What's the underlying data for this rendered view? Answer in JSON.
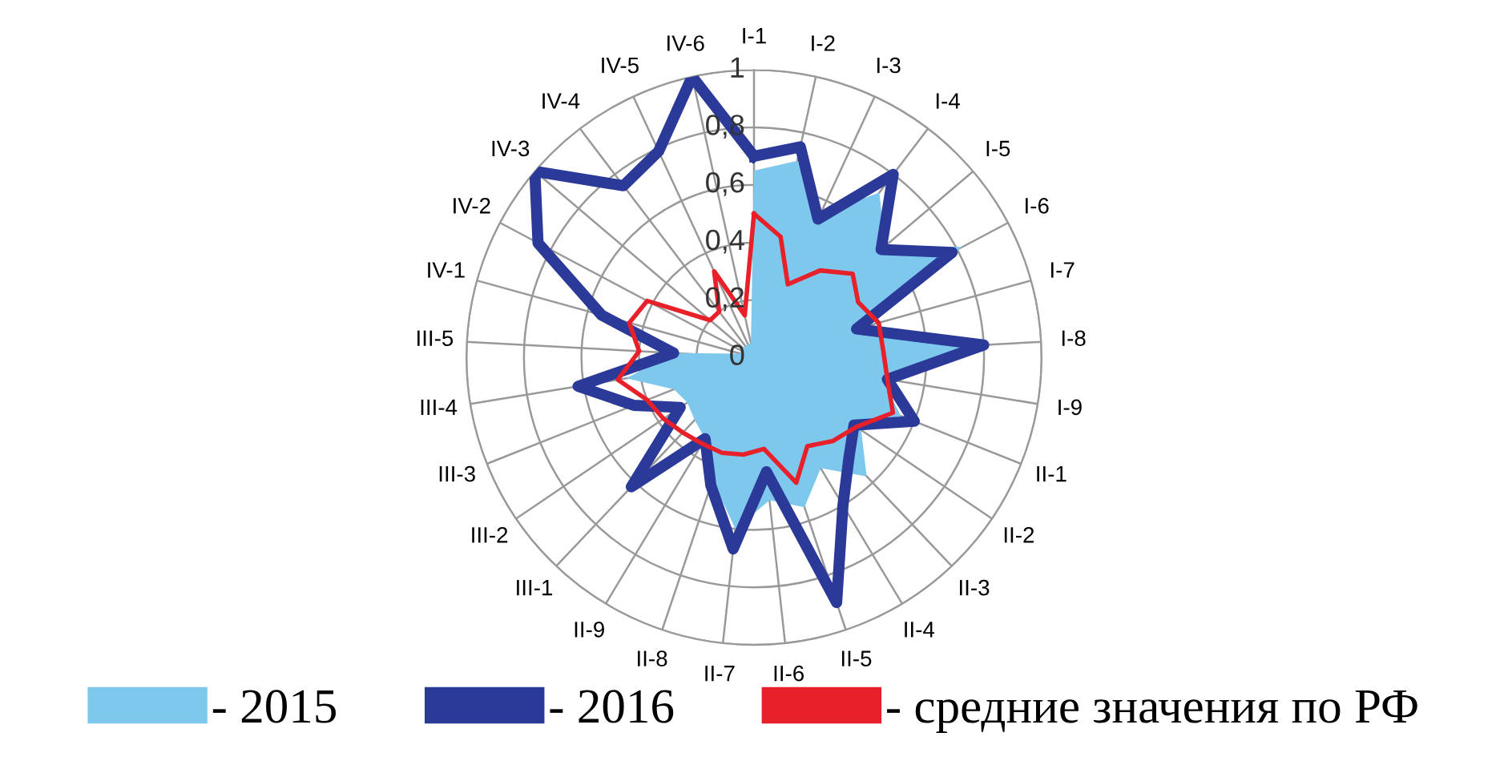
{
  "chart_data": {
    "type": "radar",
    "categories": [
      "I-1",
      "I-2",
      "I-3",
      "I-4",
      "I-5",
      "I-6",
      "I-7",
      "I-8",
      "I-9",
      "II-1",
      "II-2",
      "II-3",
      "II-4",
      "II-5",
      "II-6",
      "II-7",
      "II-8",
      "II-9",
      "III-1",
      "III-2",
      "III-3",
      "III-4",
      "III-5",
      "IV-1",
      "IV-2",
      "IV-3",
      "IV-4",
      "IV-5",
      "IV-6"
    ],
    "series": [
      {
        "name": "- 2015",
        "type": "area",
        "color": "#7ec8ee",
        "values": [
          0.65,
          0.7,
          0.55,
          0.72,
          0.6,
          0.82,
          0.4,
          0.78,
          0.45,
          0.55,
          0.45,
          0.57,
          0.45,
          0.55,
          0.5,
          0.6,
          0.45,
          0.33,
          0.3,
          0.28,
          0.3,
          0.45,
          0.28,
          0.05,
          0.05,
          0.05,
          0.05,
          0.05,
          0.05
        ]
      },
      {
        "name": "- 2016",
        "type": "radar",
        "color": "#2b3a99",
        "values": [
          0.7,
          0.75,
          0.53,
          0.8,
          0.58,
          0.78,
          0.37,
          0.8,
          0.47,
          0.6,
          0.42,
          0.48,
          0.6,
          0.9,
          0.4,
          0.67,
          0.47,
          0.33,
          0.62,
          0.31,
          0.45,
          0.62,
          0.28,
          0.55,
          0.85,
          1.0,
          0.75,
          0.79,
          1.0
        ]
      },
      {
        "name": "- средние значения по РФ",
        "type": "radar",
        "color": "#e8202a",
        "values": [
          0.5,
          0.43,
          0.28,
          0.38,
          0.45,
          0.41,
          0.45,
          0.45,
          0.47,
          0.52,
          0.43,
          0.4,
          0.36,
          0.46,
          0.32,
          0.34,
          0.35,
          0.35,
          0.36,
          0.38,
          0.4,
          0.48,
          0.4,
          0.45,
          0.42,
          0.2,
          0.2,
          0.33,
          0.15
        ]
      }
    ],
    "ylim": [
      0,
      1
    ],
    "yticks": [
      0,
      {
        "value": 0.2,
        "label": "0,2"
      },
      {
        "value": 0.4,
        "label": "0,4"
      },
      {
        "value": 0.6,
        "label": "0,6"
      },
      {
        "value": 0.8,
        "label": "0,8"
      },
      1
    ],
    "grid": true,
    "legend": "bottom"
  }
}
